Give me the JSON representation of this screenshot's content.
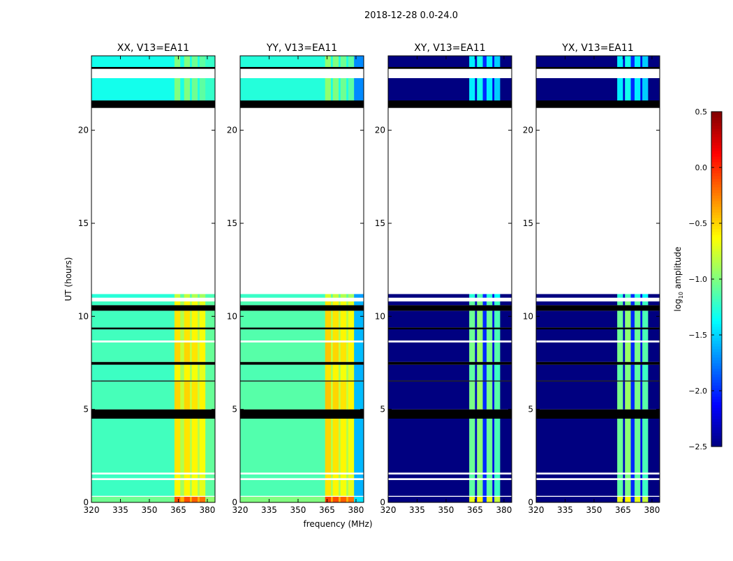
{
  "chart_data": {
    "type": "heatmap",
    "suptitle": "2018-12-28 0.0-24.0",
    "xlabel": "frequency (MHz)",
    "ylabel": "UT (hours)",
    "xlim": [
      320,
      384
    ],
    "ylim": [
      0,
      24
    ],
    "xticks": [
      320,
      335,
      350,
      365,
      380
    ],
    "yticks": [
      0,
      5,
      10,
      15,
      20
    ],
    "colorbar": {
      "label": "log10 amplitude",
      "label_main": "log",
      "label_sub": "10",
      "label_rest": " amplitude",
      "range": [
        -2.5,
        0.5
      ],
      "ticks": [
        "0.5",
        "0.0",
        "−0.5",
        "−1.0",
        "−1.5",
        "−2.0",
        "−2.5"
      ],
      "tick_values": [
        0.5,
        0.0,
        -0.5,
        -1.0,
        -1.5,
        -2.0,
        -2.5
      ],
      "colormap": "jet"
    },
    "time_segments": [
      {
        "t": [
          0,
          0.3
        ],
        "kind": "data",
        "boost": 0.5
      },
      {
        "t": [
          0.3,
          0.35
        ],
        "kind": "gap"
      },
      {
        "t": [
          0.35,
          1.2
        ],
        "kind": "data",
        "boost": 0
      },
      {
        "t": [
          1.2,
          1.3
        ],
        "kind": "gap"
      },
      {
        "t": [
          1.3,
          1.5
        ],
        "kind": "data",
        "boost": 0
      },
      {
        "t": [
          1.5,
          1.6
        ],
        "kind": "gap"
      },
      {
        "t": [
          1.6,
          4.5
        ],
        "kind": "data",
        "boost": 0.05
      },
      {
        "t": [
          4.5,
          5.0
        ],
        "kind": "flag"
      },
      {
        "t": [
          5.0,
          6.5
        ],
        "kind": "data",
        "boost": 0.1
      },
      {
        "t": [
          6.5,
          6.55
        ],
        "kind": "flag"
      },
      {
        "t": [
          6.55,
          7.4
        ],
        "kind": "data",
        "boost": 0
      },
      {
        "t": [
          7.4,
          7.55
        ],
        "kind": "flag"
      },
      {
        "t": [
          7.55,
          8.6
        ],
        "kind": "data",
        "boost": 0.1
      },
      {
        "t": [
          8.6,
          8.7
        ],
        "kind": "gap"
      },
      {
        "t": [
          8.7,
          9.3
        ],
        "kind": "data",
        "boost": 0.05
      },
      {
        "t": [
          9.3,
          9.4
        ],
        "kind": "flag"
      },
      {
        "t": [
          9.4,
          10.3
        ],
        "kind": "data",
        "boost": 0.05
      },
      {
        "t": [
          10.3,
          10.6
        ],
        "kind": "flag"
      },
      {
        "t": [
          10.6,
          10.8
        ],
        "kind": "data",
        "boost": 0
      },
      {
        "t": [
          10.8,
          11.0
        ],
        "kind": "gap"
      },
      {
        "t": [
          11.0,
          11.2
        ],
        "kind": "data",
        "boost": -0.2
      },
      {
        "t": [
          11.2,
          21.2
        ],
        "kind": "gap"
      },
      {
        "t": [
          21.2,
          21.6
        ],
        "kind": "flag"
      },
      {
        "t": [
          21.6,
          22.8
        ],
        "kind": "data",
        "boost": -0.4
      },
      {
        "t": [
          22.8,
          23.3
        ],
        "kind": "gap"
      },
      {
        "t": [
          23.3,
          23.4
        ],
        "kind": "flag"
      },
      {
        "t": [
          23.4,
          24.0
        ],
        "kind": "data",
        "boost": -0.4
      }
    ],
    "panels": [
      {
        "title": "XX, V13=EA11",
        "kind": "parallel",
        "spectrum": [
          [
            320,
            363,
            -1.2
          ],
          [
            363,
            366,
            -0.6
          ],
          [
            366,
            368,
            -0.9
          ],
          [
            368,
            371,
            -0.6
          ],
          [
            371,
            372,
            -0.9
          ],
          [
            372,
            375,
            -0.65
          ],
          [
            375,
            376,
            -0.9
          ],
          [
            376,
            379,
            -0.7
          ],
          [
            379,
            384,
            -1.1
          ]
        ]
      },
      {
        "title": "YY, V13=EA11",
        "kind": "parallel",
        "spectrum": [
          [
            320,
            364,
            -1.15
          ],
          [
            364,
            367,
            -0.55
          ],
          [
            367,
            368,
            -0.9
          ],
          [
            368,
            371,
            -0.6
          ],
          [
            371,
            372,
            -0.9
          ],
          [
            372,
            375,
            -0.65
          ],
          [
            375,
            376,
            -0.9
          ],
          [
            376,
            379,
            -0.7
          ],
          [
            379,
            384,
            -1.6
          ]
        ]
      },
      {
        "title": "XY, V13=EA11",
        "kind": "cross",
        "spectrum": [
          [
            320,
            362,
            -2.5
          ],
          [
            362,
            365,
            -1.1
          ],
          [
            365,
            366,
            -2.3
          ],
          [
            366,
            369,
            -1.0
          ],
          [
            369,
            371,
            -2.0
          ],
          [
            371,
            374,
            -1.1
          ],
          [
            374,
            375,
            -2.2
          ],
          [
            375,
            378,
            -1.2
          ],
          [
            378,
            384,
            -2.5
          ]
        ]
      },
      {
        "title": "YX, V13=EA11",
        "kind": "cross",
        "spectrum": [
          [
            320,
            362,
            -2.5
          ],
          [
            362,
            365,
            -1.1
          ],
          [
            365,
            366,
            -2.3
          ],
          [
            366,
            369,
            -1.0
          ],
          [
            369,
            371,
            -2.0
          ],
          [
            371,
            374,
            -1.1
          ],
          [
            374,
            375,
            -2.2
          ],
          [
            375,
            378,
            -1.2
          ],
          [
            378,
            384,
            -2.5
          ]
        ]
      }
    ]
  }
}
